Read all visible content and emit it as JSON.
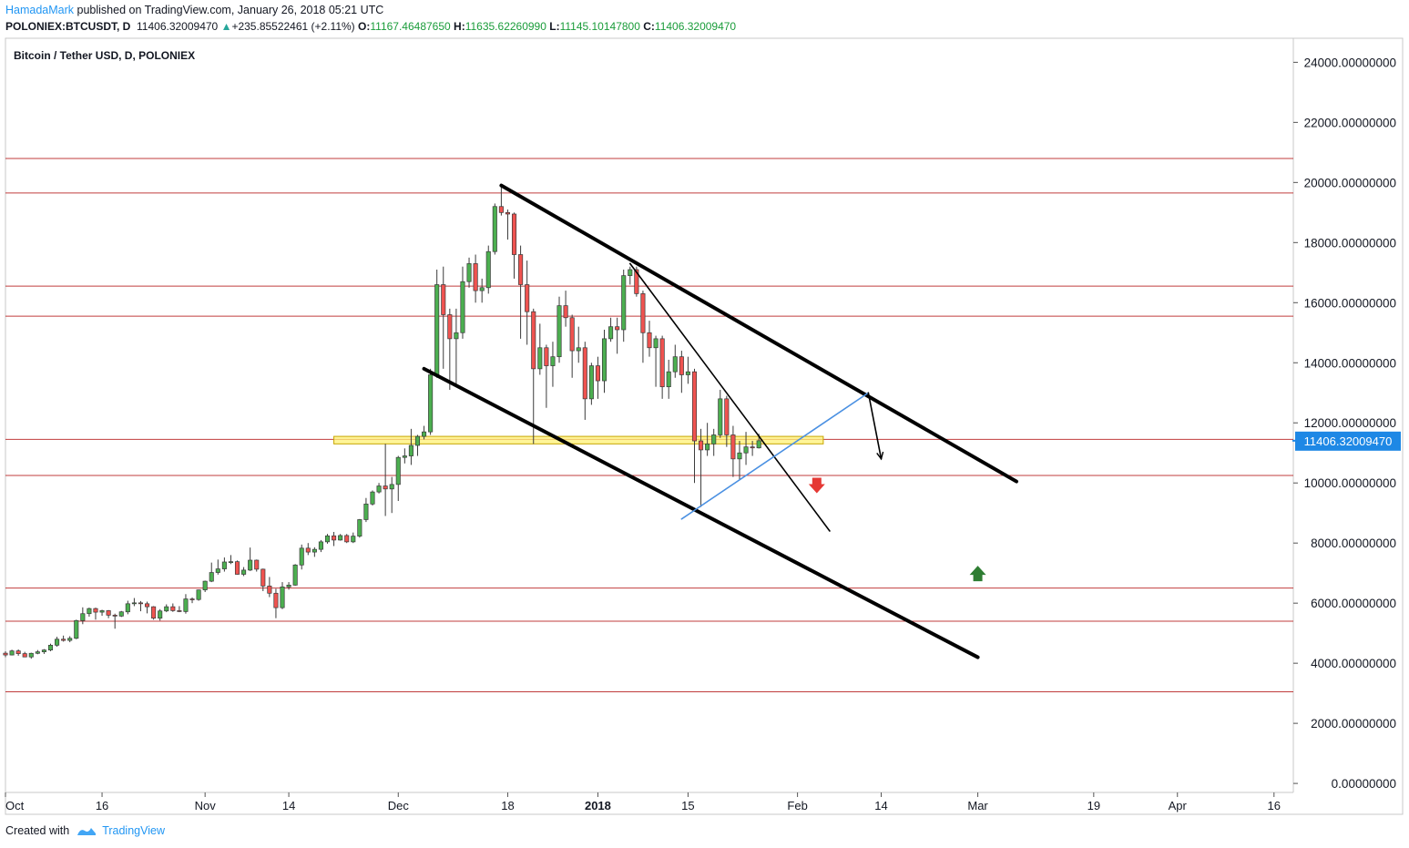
{
  "header": {
    "author": "HamadaMark",
    "published_text": "published on TradingView.com, January 26, 2018 05:21 UTC",
    "symbol": "POLONIEX:BTCUSDT, D",
    "last": "11406.32009470",
    "change": "+235.85522461 (+2.11%)",
    "o_label": "O:",
    "o_value": "11167.46487650",
    "h_label": "H:",
    "h_value": "11635.62260990",
    "l_label": "L:",
    "l_value": "11145.10147800",
    "c_label": "C:",
    "c_value": "11406.32009470"
  },
  "footer": {
    "created_with": "Created with",
    "brand": "TradingView"
  },
  "colors": {
    "up": "#26a69a",
    "up_fill": "#4caf50",
    "down": "#ef5350",
    "hline": "#b71c1c",
    "channel": "#000000",
    "blue_line": "#4a90e2",
    "zone_fill": "#fff176",
    "zone_stroke": "#c8a600",
    "price_tag": "#1e88e5",
    "arrow_up": "#2e7d32",
    "arrow_down": "#e53935"
  },
  "chart_data": {
    "type": "candlestick",
    "title": "Bitcoin / Tether USD, D, POLONIEX",
    "y_axis": {
      "range": [
        -300,
        24800
      ],
      "ticks": [
        "24000.00000000",
        "22000.00000000",
        "20000.00000000",
        "18000.00000000",
        "16000.00000000",
        "14000.00000000",
        "12000.00000000",
        "10000.00000000",
        "8000.00000000",
        "6000.00000000",
        "4000.00000000",
        "2000.00000000",
        "0.00000000"
      ],
      "tick_values": [
        24000,
        22000,
        20000,
        18000,
        16000,
        14000,
        12000,
        10000,
        8000,
        6000,
        4000,
        2000,
        0
      ]
    },
    "x_axis": {
      "range": [
        "2017-10-01",
        "2018-04-19"
      ],
      "ticks": [
        {
          "label": "Oct",
          "date": "2017-10-01"
        },
        {
          "label": "16",
          "date": "2017-10-16"
        },
        {
          "label": "Nov",
          "date": "2017-11-01"
        },
        {
          "label": "14",
          "date": "2017-11-14"
        },
        {
          "label": "Dec",
          "date": "2017-12-01"
        },
        {
          "label": "18",
          "date": "2017-12-18"
        },
        {
          "label": "2018",
          "date": "2018-01-01",
          "bold": true
        },
        {
          "label": "15",
          "date": "2018-01-15"
        },
        {
          "label": "Feb",
          "date": "2018-02-01"
        },
        {
          "label": "14",
          "date": "2018-02-14"
        },
        {
          "label": "Mar",
          "date": "2018-03-01"
        },
        {
          "label": "19",
          "date": "2018-03-19"
        },
        {
          "label": "Apr",
          "date": "2018-04-01"
        },
        {
          "label": "16",
          "date": "2018-04-16"
        }
      ]
    },
    "last_price_label": "11406.32009470",
    "last_price": 11406.32,
    "horizontal_levels": [
      20800,
      19650,
      16550,
      15550,
      11450,
      10250,
      6500,
      5400,
      3050
    ],
    "support_zone": {
      "start": "2017-11-21",
      "end": "2018-02-05",
      "low": 11300,
      "high": 11550
    },
    "trend_lines": [
      {
        "role": "upper_channel",
        "from": [
          "2017-12-17",
          19900
        ],
        "to": [
          "2018-03-07",
          10050
        ],
        "weight": "thick"
      },
      {
        "role": "lower_channel",
        "from": [
          "2017-12-05",
          13800
        ],
        "to": [
          "2018-03-01",
          4200
        ],
        "weight": "thick"
      },
      {
        "role": "steep_resistance",
        "from": [
          "2018-01-06",
          17300
        ],
        "to": [
          "2018-02-06",
          8400
        ],
        "weight": "thin"
      },
      {
        "role": "projection_up",
        "from": [
          "2018-01-14",
          8800
        ],
        "to": [
          "2018-02-12",
          13000
        ],
        "weight": "thin",
        "color": "blue"
      },
      {
        "role": "projection_down",
        "from": [
          "2018-02-12",
          13000
        ],
        "to": [
          "2018-02-14",
          10800
        ],
        "weight": "thin",
        "arrow": true
      }
    ],
    "markers": [
      {
        "type": "arrow-down",
        "date": "2018-02-04",
        "value": 9900
      },
      {
        "type": "arrow-up",
        "date": "2018-03-01",
        "value": 7000
      }
    ],
    "candles": [
      [
        "2017-10-01",
        4335,
        4400,
        4200,
        4275
      ],
      [
        "2017-10-02",
        4275,
        4450,
        4260,
        4410
      ],
      [
        "2017-10-03",
        4410,
        4460,
        4250,
        4320
      ],
      [
        "2017-10-04",
        4320,
        4380,
        4200,
        4210
      ],
      [
        "2017-10-05",
        4210,
        4350,
        4150,
        4330
      ],
      [
        "2017-10-06",
        4330,
        4440,
        4300,
        4380
      ],
      [
        "2017-10-07",
        4380,
        4470,
        4310,
        4440
      ],
      [
        "2017-10-08",
        4440,
        4650,
        4400,
        4600
      ],
      [
        "2017-10-09",
        4600,
        4880,
        4550,
        4800
      ],
      [
        "2017-10-10",
        4800,
        4920,
        4720,
        4760
      ],
      [
        "2017-10-11",
        4760,
        4900,
        4700,
        4830
      ],
      [
        "2017-10-12",
        4830,
        5450,
        4800,
        5420
      ],
      [
        "2017-10-13",
        5420,
        5860,
        5300,
        5650
      ],
      [
        "2017-10-14",
        5650,
        5850,
        5550,
        5820
      ],
      [
        "2017-10-15",
        5820,
        5850,
        5450,
        5700
      ],
      [
        "2017-10-16",
        5700,
        5780,
        5580,
        5750
      ],
      [
        "2017-10-17",
        5750,
        5770,
        5500,
        5600
      ],
      [
        "2017-10-18",
        5600,
        5650,
        5150,
        5570
      ],
      [
        "2017-10-19",
        5570,
        5740,
        5540,
        5710
      ],
      [
        "2017-10-20",
        5710,
        6080,
        5630,
        5980
      ],
      [
        "2017-10-21",
        5980,
        6170,
        5900,
        6010
      ],
      [
        "2017-10-22",
        6010,
        6070,
        5730,
        5980
      ],
      [
        "2017-10-23",
        5980,
        6050,
        5660,
        5880
      ],
      [
        "2017-10-24",
        5880,
        5900,
        5450,
        5500
      ],
      [
        "2017-10-25",
        5500,
        5800,
        5420,
        5740
      ],
      [
        "2017-10-26",
        5740,
        5960,
        5700,
        5880
      ],
      [
        "2017-10-27",
        5880,
        5990,
        5710,
        5750
      ],
      [
        "2017-10-28",
        5750,
        5900,
        5700,
        5720
      ],
      [
        "2017-10-29",
        5720,
        6300,
        5650,
        6140
      ],
      [
        "2017-10-30",
        6140,
        6190,
        6000,
        6120
      ],
      [
        "2017-10-31",
        6120,
        6450,
        6080,
        6440
      ],
      [
        "2017-11-01",
        6440,
        6750,
        6370,
        6730
      ],
      [
        "2017-11-02",
        6730,
        7350,
        6700,
        7020
      ],
      [
        "2017-11-03",
        7020,
        7450,
        6950,
        7140
      ],
      [
        "2017-11-04",
        7140,
        7520,
        7050,
        7370
      ],
      [
        "2017-11-05",
        7370,
        7600,
        7300,
        7380
      ],
      [
        "2017-11-06",
        7380,
        7420,
        6950,
        6960
      ],
      [
        "2017-11-07",
        6960,
        7200,
        6900,
        7100
      ],
      [
        "2017-11-08",
        7100,
        7850,
        7070,
        7430
      ],
      [
        "2017-11-09",
        7430,
        7450,
        7050,
        7130
      ],
      [
        "2017-11-10",
        7130,
        7150,
        6400,
        6570
      ],
      [
        "2017-11-11",
        6570,
        6870,
        6200,
        6330
      ],
      [
        "2017-11-12",
        6330,
        6480,
        5500,
        5850
      ],
      [
        "2017-11-13",
        5850,
        6700,
        5800,
        6540
      ],
      [
        "2017-11-14",
        6540,
        6700,
        6450,
        6600
      ],
      [
        "2017-11-15",
        6600,
        7300,
        6580,
        7270
      ],
      [
        "2017-11-16",
        7270,
        7950,
        7120,
        7830
      ],
      [
        "2017-11-17",
        7830,
        8000,
        7600,
        7700
      ],
      [
        "2017-11-18",
        7700,
        7860,
        7540,
        7790
      ],
      [
        "2017-11-19",
        7790,
        8100,
        7700,
        8040
      ],
      [
        "2017-11-20",
        8040,
        8300,
        7980,
        8240
      ],
      [
        "2017-11-21",
        8240,
        8370,
        7900,
        8100
      ],
      [
        "2017-11-22",
        8100,
        8300,
        8080,
        8250
      ],
      [
        "2017-11-23",
        8250,
        8300,
        8000,
        8040
      ],
      [
        "2017-11-24",
        8040,
        8350,
        8000,
        8230
      ],
      [
        "2017-11-25",
        8230,
        8800,
        8180,
        8780
      ],
      [
        "2017-11-26",
        8780,
        9500,
        8700,
        9300
      ],
      [
        "2017-11-27",
        9300,
        9750,
        9250,
        9700
      ],
      [
        "2017-11-28",
        9700,
        10000,
        9650,
        9900
      ],
      [
        "2017-11-29",
        9900,
        11300,
        8900,
        9800
      ],
      [
        "2017-11-30",
        9800,
        10200,
        9000,
        9950
      ],
      [
        "2017-12-01",
        9950,
        10900,
        9400,
        10850
      ],
      [
        "2017-12-02",
        10850,
        11150,
        10650,
        10900
      ],
      [
        "2017-12-03",
        10900,
        11800,
        10600,
        11250
      ],
      [
        "2017-12-04",
        11250,
        11600,
        10900,
        11550
      ],
      [
        "2017-12-05",
        11550,
        11900,
        11450,
        11700
      ],
      [
        "2017-12-06",
        11700,
        13800,
        11600,
        13600
      ],
      [
        "2017-12-07",
        13600,
        17100,
        13500,
        16600
      ],
      [
        "2017-12-08",
        16600,
        17200,
        13800,
        15600
      ],
      [
        "2017-12-09",
        15600,
        15800,
        13100,
        14800
      ],
      [
        "2017-12-10",
        14800,
        15800,
        13200,
        15000
      ],
      [
        "2017-12-11",
        15000,
        17200,
        14800,
        16700
      ],
      [
        "2017-12-12",
        16700,
        17500,
        16500,
        17300
      ],
      [
        "2017-12-13",
        17300,
        17600,
        16000,
        16400
      ],
      [
        "2017-12-14",
        16400,
        16800,
        16000,
        16500
      ],
      [
        "2017-12-15",
        16500,
        17900,
        16300,
        17700
      ],
      [
        "2017-12-16",
        17700,
        19300,
        17600,
        19200
      ],
      [
        "2017-12-17",
        19200,
        19900,
        18900,
        19000
      ],
      [
        "2017-12-18",
        19000,
        19100,
        18100,
        18950
      ],
      [
        "2017-12-19",
        18950,
        19000,
        16800,
        17600
      ],
      [
        "2017-12-20",
        17600,
        17900,
        14800,
        16600
      ],
      [
        "2017-12-21",
        16600,
        17400,
        14600,
        15700
      ],
      [
        "2017-12-22",
        15700,
        15800,
        11300,
        13800
      ],
      [
        "2017-12-23",
        13800,
        15300,
        13600,
        14500
      ],
      [
        "2017-12-24",
        14500,
        14600,
        12500,
        13900
      ],
      [
        "2017-12-25",
        13900,
        14700,
        13200,
        14200
      ],
      [
        "2017-12-26",
        14200,
        16200,
        14000,
        15900
      ],
      [
        "2017-12-27",
        15900,
        16400,
        15200,
        15500
      ],
      [
        "2017-12-28",
        15500,
        15600,
        13500,
        14400
      ],
      [
        "2017-12-29",
        14400,
        15200,
        14000,
        14500
      ],
      [
        "2017-12-30",
        14500,
        14700,
        12100,
        12800
      ],
      [
        "2017-12-31",
        12800,
        14000,
        12600,
        13900
      ],
      [
        "2018-01-01",
        13900,
        14200,
        12800,
        13400
      ],
      [
        "2018-01-02",
        13400,
        15100,
        13000,
        14800
      ],
      [
        "2018-01-03",
        14800,
        15500,
        14700,
        15200
      ],
      [
        "2018-01-04",
        15200,
        15500,
        14300,
        15100
      ],
      [
        "2018-01-05",
        15100,
        17100,
        14700,
        16900
      ],
      [
        "2018-01-06",
        16900,
        17200,
        16600,
        17100
      ],
      [
        "2018-01-07",
        17100,
        17200,
        16200,
        16300
      ],
      [
        "2018-01-08",
        16300,
        16400,
        14000,
        15000
      ],
      [
        "2018-01-09",
        15000,
        15400,
        14200,
        14500
      ],
      [
        "2018-01-10",
        14500,
        14900,
        13200,
        14800
      ],
      [
        "2018-01-11",
        14800,
        14900,
        12800,
        13200
      ],
      [
        "2018-01-12",
        13200,
        14100,
        12800,
        13700
      ],
      [
        "2018-01-13",
        13700,
        14600,
        13500,
        14200
      ],
      [
        "2018-01-14",
        14200,
        14400,
        13000,
        13600
      ],
      [
        "2018-01-15",
        13600,
        14200,
        13300,
        13700
      ],
      [
        "2018-01-16",
        13700,
        13800,
        10000,
        11400
      ],
      [
        "2018-01-17",
        11400,
        11800,
        9200,
        11100
      ],
      [
        "2018-01-18",
        11100,
        12000,
        10900,
        11300
      ],
      [
        "2018-01-19",
        11300,
        11800,
        10900,
        11600
      ],
      [
        "2018-01-20",
        11600,
        13100,
        11500,
        12800
      ],
      [
        "2018-01-21",
        12800,
        12900,
        11200,
        11600
      ],
      [
        "2018-01-22",
        11600,
        11900,
        10200,
        10800
      ],
      [
        "2018-01-23",
        10800,
        11400,
        10100,
        11000
      ],
      [
        "2018-01-24",
        11000,
        11700,
        10600,
        11200
      ],
      [
        "2018-01-25",
        11200,
        11400,
        10900,
        11167
      ],
      [
        "2018-01-26",
        11167,
        11636,
        11145,
        11406
      ]
    ]
  }
}
